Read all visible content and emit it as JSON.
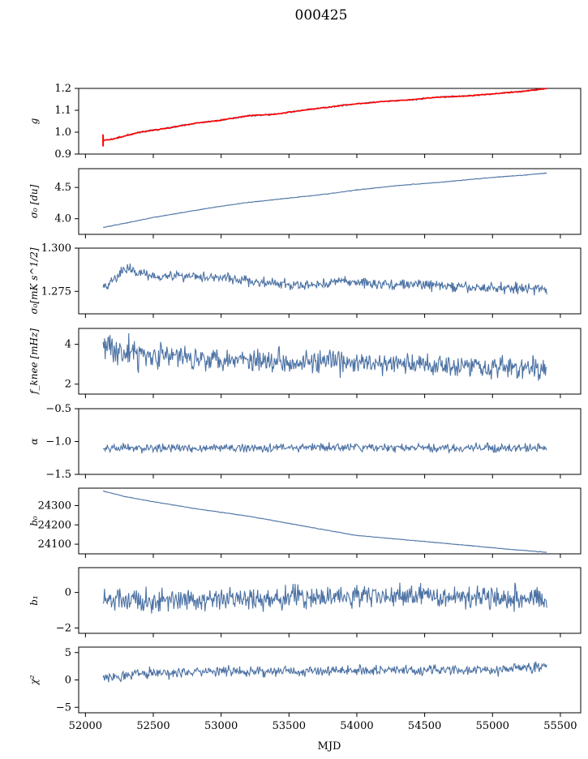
{
  "figure_title": "000425",
  "xlabel": "MJD",
  "colors": {
    "series": "#4c72a4",
    "overlay": "#ff0000"
  },
  "chart_data": [
    {
      "type": "line",
      "name": "g",
      "ylabel": "g",
      "xlim": [
        51950,
        55650
      ],
      "ylim": [
        0.9,
        1.2
      ],
      "yticks": [
        0.9,
        1.0,
        1.1,
        1.2
      ],
      "ytick_labels": [
        "0.9",
        "1.0",
        "1.1",
        "1.2"
      ],
      "series": [
        {
          "name": "g",
          "color": "#4c72a4",
          "x": [
            52130,
            52200,
            52400,
            52600,
            52800,
            53000,
            53200,
            53400,
            53600,
            53800,
            54000,
            54200,
            54400,
            54600,
            54800,
            55000,
            55200,
            55400
          ],
          "values": [
            0.962,
            0.968,
            1.0,
            1.018,
            1.04,
            1.055,
            1.075,
            1.082,
            1.1,
            1.115,
            1.13,
            1.14,
            1.148,
            1.16,
            1.165,
            1.175,
            1.185,
            1.2
          ]
        },
        {
          "name": "g (red)",
          "color": "#ff0000",
          "x": [
            52130,
            52200,
            52400,
            52600,
            52800,
            53000,
            53200,
            53400,
            53600,
            53800,
            54000,
            54200,
            54400,
            54600,
            54800,
            55000,
            55200,
            55400
          ],
          "values": [
            0.962,
            0.968,
            1.0,
            1.018,
            1.04,
            1.055,
            1.075,
            1.082,
            1.1,
            1.115,
            1.13,
            1.14,
            1.148,
            1.16,
            1.165,
            1.175,
            1.185,
            1.2
          ]
        }
      ]
    },
    {
      "type": "line",
      "name": "sigma0-du",
      "ylabel": "σ₀ [du]",
      "xlim": [
        51950,
        55650
      ],
      "ylim": [
        3.75,
        4.8
      ],
      "yticks": [
        4.0,
        4.5
      ],
      "ytick_labels": [
        "4.0",
        "4.5"
      ],
      "series": [
        {
          "name": "σ₀ [du]",
          "x": [
            52130,
            52300,
            52500,
            52800,
            53000,
            53200,
            53500,
            53800,
            54000,
            54300,
            54600,
            54800,
            55000,
            55200,
            55400
          ],
          "values": [
            3.86,
            3.93,
            4.02,
            4.13,
            4.2,
            4.26,
            4.33,
            4.4,
            4.46,
            4.53,
            4.58,
            4.62,
            4.66,
            4.69,
            4.73
          ]
        }
      ]
    },
    {
      "type": "line",
      "name": "sigma0-mk",
      "ylabel": "σ₀[mK s^1/2]",
      "xlim": [
        51950,
        55650
      ],
      "ylim": [
        1.262,
        1.3
      ],
      "yticks": [
        1.275,
        1.3
      ],
      "ytick_labels": [
        "1.275",
        "1.300"
      ],
      "series": [
        {
          "name": "σ₀[mK s^1/2]",
          "x": [
            52130,
            52300,
            52500,
            52800,
            53000,
            53300,
            53600,
            53900,
            54200,
            54500,
            54800,
            55100,
            55300,
            55400
          ],
          "values": [
            1.277,
            1.288,
            1.284,
            1.284,
            1.283,
            1.28,
            1.278,
            1.281,
            1.279,
            1.279,
            1.277,
            1.277,
            1.277,
            1.275
          ]
        }
      ]
    },
    {
      "type": "line",
      "name": "fknee",
      "ylabel": "f_knee [mHz]",
      "xlim": [
        51950,
        55650
      ],
      "ylim": [
        1.5,
        4.8
      ],
      "yticks": [
        2,
        4
      ],
      "ytick_labels": [
        "2",
        "4"
      ],
      "series": [
        {
          "name": "f_knee [mHz]",
          "x": [
            52130,
            52300,
            52600,
            53000,
            53400,
            53800,
            54200,
            54600,
            55000,
            55400
          ],
          "values": [
            4.0,
            3.6,
            3.4,
            3.3,
            3.2,
            3.1,
            3.0,
            3.0,
            2.9,
            2.7
          ]
        }
      ]
    },
    {
      "type": "line",
      "name": "alpha",
      "ylabel": "α",
      "xlim": [
        51950,
        55650
      ],
      "ylim": [
        -1.5,
        -0.5
      ],
      "yticks": [
        -1.5,
        -1.0,
        -0.5
      ],
      "ytick_labels": [
        "−1.5",
        "−1.0",
        "−0.5"
      ],
      "series": [
        {
          "name": "α",
          "x": [
            52130,
            52500,
            53000,
            53500,
            54000,
            54500,
            55000,
            55400
          ],
          "values": [
            -1.1,
            -1.1,
            -1.1,
            -1.09,
            -1.09,
            -1.1,
            -1.1,
            -1.1
          ]
        }
      ]
    },
    {
      "type": "line",
      "name": "b0",
      "ylabel": "b₀",
      "xlim": [
        51950,
        55650
      ],
      "ylim": [
        24050,
        24390
      ],
      "yticks": [
        24100,
        24200,
        24300
      ],
      "ytick_labels": [
        "24100",
        "24200",
        "24300"
      ],
      "series": [
        {
          "name": "b₀",
          "x": [
            52130,
            52300,
            52500,
            52800,
            53200,
            53600,
            54000,
            54400,
            54800,
            55100,
            55400
          ],
          "values": [
            24375,
            24345,
            24320,
            24285,
            24245,
            24195,
            24145,
            24120,
            24095,
            24075,
            24058
          ]
        }
      ]
    },
    {
      "type": "line",
      "name": "b1",
      "ylabel": "b₁",
      "xlim": [
        51950,
        55650
      ],
      "ylim": [
        -2.3,
        1.4
      ],
      "yticks": [
        -2,
        0
      ],
      "ytick_labels": [
        "−2",
        "0"
      ],
      "series": [
        {
          "name": "b₁",
          "x": [
            52130,
            52500,
            53000,
            53500,
            54000,
            54500,
            55000,
            55400
          ],
          "values": [
            -0.4,
            -0.5,
            -0.4,
            -0.3,
            -0.2,
            -0.2,
            -0.2,
            -0.4
          ]
        }
      ]
    },
    {
      "type": "line",
      "name": "chi2",
      "ylabel": "χ²",
      "xlim": [
        51950,
        55650
      ],
      "ylim": [
        -6,
        6
      ],
      "yticks": [
        -5,
        0,
        5
      ],
      "ytick_labels": [
        "−5",
        "0",
        "5"
      ],
      "xticks": [
        52000,
        52500,
        53000,
        53500,
        54000,
        54500,
        55000,
        55500
      ],
      "xtick_labels": [
        "52000",
        "52500",
        "53000",
        "53500",
        "54000",
        "54500",
        "55000",
        "55500"
      ],
      "series": [
        {
          "name": "χ²",
          "x": [
            52130,
            52500,
            53000,
            53500,
            54000,
            54500,
            55000,
            55400
          ],
          "values": [
            0.5,
            1.3,
            1.5,
            1.6,
            1.8,
            1.8,
            1.8,
            2.5
          ]
        }
      ]
    }
  ]
}
